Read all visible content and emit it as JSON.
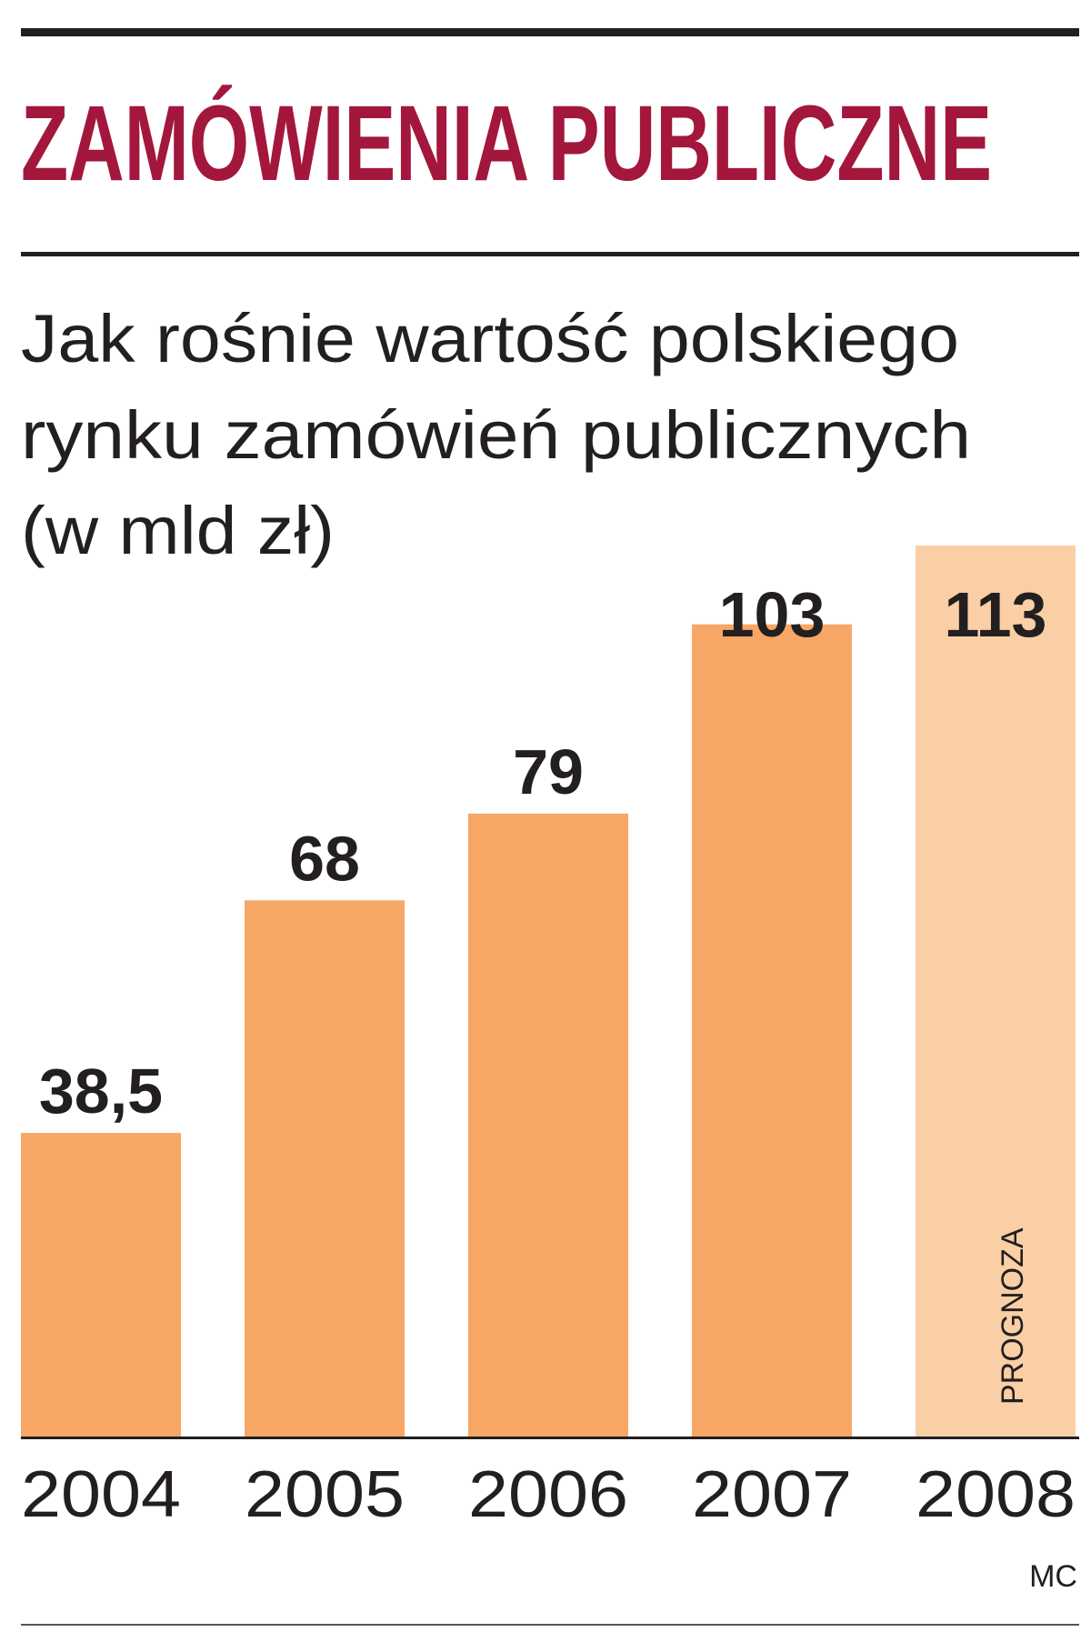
{
  "chart_data": {
    "type": "bar",
    "title": "ZAMÓWIENIA PUBLICZNE",
    "subtitle": [
      "Jak rośnie wartość polskiego",
      "rynku zamówień publicznych",
      "(w mld zł)"
    ],
    "categories": [
      "2004",
      "2005",
      "2006",
      "2007",
      "2008"
    ],
    "values": [
      38.5,
      68,
      79,
      103,
      113
    ],
    "value_labels": [
      "38,5",
      "68",
      "79",
      "103",
      "113"
    ],
    "colors": [
      "#f6a765",
      "#f6a765",
      "#f6a765",
      "#f6a765",
      "#fbcfa5"
    ],
    "annotation": "PROGNOZA",
    "source": "MC"
  }
}
